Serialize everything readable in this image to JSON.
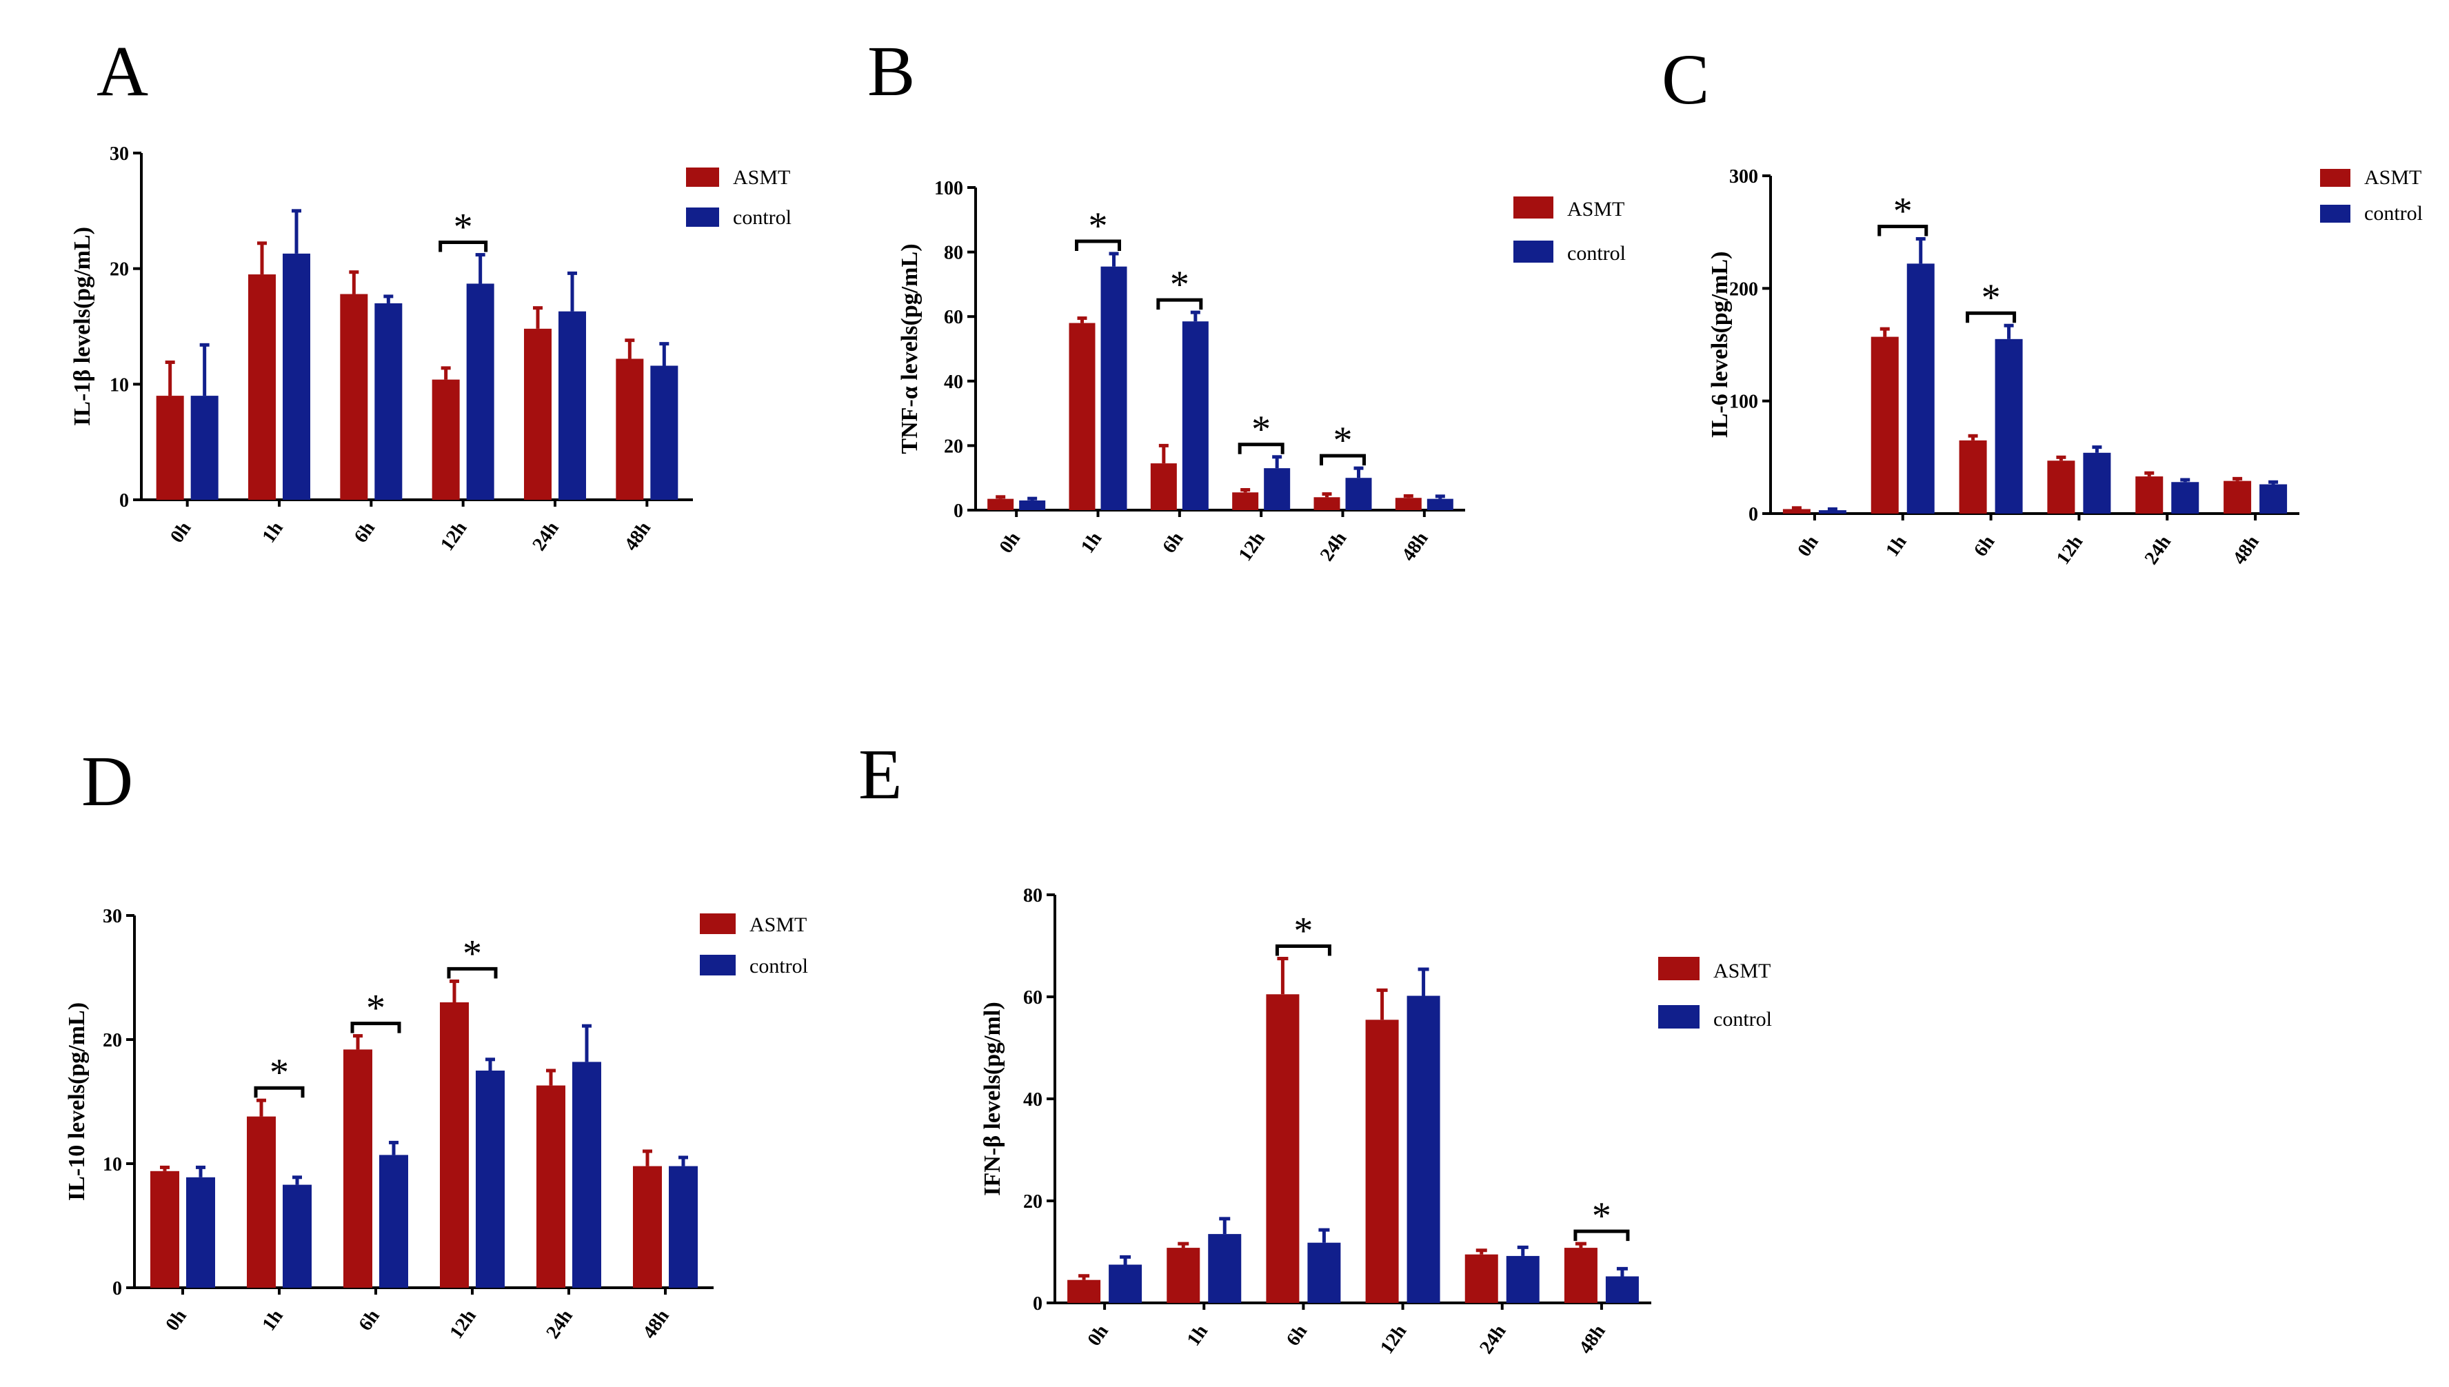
{
  "colors": {
    "asmt": "#a50f0f",
    "control": "#111f8c",
    "axis": "#000000"
  },
  "chart_data": [
    {
      "panel": "A",
      "type": "bar",
      "ylabel": "IL-1β levels(pg/mL)",
      "xlabel": "",
      "ylim": [
        0,
        30
      ],
      "yticks": [
        0,
        10,
        20,
        30
      ],
      "categories": [
        "0h",
        "1h",
        "6h",
        "12h",
        "24h",
        "48h"
      ],
      "series": [
        {
          "name": "ASMT",
          "values": [
            9.0,
            19.5,
            17.8,
            10.4,
            14.8,
            12.2
          ],
          "errors": [
            2.9,
            2.7,
            1.9,
            1.0,
            1.8,
            1.6
          ]
        },
        {
          "name": "control",
          "values": [
            9.0,
            21.3,
            17.0,
            18.7,
            16.3,
            11.6
          ],
          "errors": [
            4.4,
            3.7,
            0.6,
            2.5,
            3.3,
            1.9
          ]
        }
      ],
      "significance": [
        {
          "category": "12h",
          "label": "*"
        }
      ],
      "legend_position": "top-right"
    },
    {
      "panel": "B",
      "type": "bar",
      "ylabel": "TNF-α levels(pg/mL)",
      "xlabel": "",
      "ylim": [
        0,
        100
      ],
      "yticks": [
        0,
        20,
        40,
        60,
        80,
        100
      ],
      "categories": [
        "0h",
        "1h",
        "6h",
        "12h",
        "24h",
        "48h"
      ],
      "series": [
        {
          "name": "ASMT",
          "values": [
            3.5,
            58.0,
            14.5,
            5.5,
            4.0,
            3.8
          ],
          "errors": [
            0.6,
            1.5,
            5.5,
            0.8,
            1.0,
            0.6
          ]
        },
        {
          "name": "control",
          "values": [
            3.0,
            75.5,
            58.5,
            13.0,
            10.0,
            3.5
          ],
          "errors": [
            0.6,
            4.0,
            2.8,
            3.5,
            3.0,
            0.8
          ]
        }
      ],
      "significance": [
        {
          "category": "1h",
          "label": "*"
        },
        {
          "category": "6h",
          "label": "*"
        },
        {
          "category": "12h",
          "label": "*"
        },
        {
          "category": "24h",
          "label": "*"
        }
      ],
      "legend_position": "top-right"
    },
    {
      "panel": "C",
      "type": "bar",
      "ylabel": "IL-6 levels(pg/mL)",
      "xlabel": "",
      "ylim": [
        0,
        300
      ],
      "yticks": [
        0,
        100,
        200,
        300
      ],
      "categories": [
        "0h",
        "1h",
        "6h",
        "12h",
        "24h",
        "48h"
      ],
      "series": [
        {
          "name": "ASMT",
          "values": [
            4,
            157,
            65,
            47,
            33,
            29
          ],
          "errors": [
            1,
            7,
            4,
            3,
            3,
            2
          ]
        },
        {
          "name": "control",
          "values": [
            3,
            222,
            155,
            54,
            28,
            26
          ],
          "errors": [
            1,
            22,
            12,
            5,
            2,
            2
          ]
        }
      ],
      "significance": [
        {
          "category": "1h",
          "label": "*"
        },
        {
          "category": "6h",
          "label": "*"
        }
      ],
      "legend_position": "top-right"
    },
    {
      "panel": "D",
      "type": "bar",
      "ylabel": "IL-10 levels(pg/mL)",
      "xlabel": "",
      "ylim": [
        0,
        30
      ],
      "yticks": [
        0,
        10,
        20,
        30
      ],
      "categories": [
        "0h",
        "1h",
        "6h",
        "12h",
        "24h",
        "48h"
      ],
      "series": [
        {
          "name": "ASMT",
          "values": [
            9.4,
            13.8,
            19.2,
            23.0,
            16.3,
            9.8
          ],
          "errors": [
            0.3,
            1.3,
            1.1,
            1.7,
            1.2,
            1.2
          ]
        },
        {
          "name": "control",
          "values": [
            8.9,
            8.3,
            10.7,
            17.5,
            18.2,
            9.8
          ],
          "errors": [
            0.8,
            0.6,
            1.0,
            0.9,
            2.9,
            0.7
          ]
        }
      ],
      "significance": [
        {
          "category": "1h",
          "label": "*"
        },
        {
          "category": "6h",
          "label": "*"
        },
        {
          "category": "12h",
          "label": "*"
        }
      ],
      "legend_position": "top-right"
    },
    {
      "panel": "E",
      "type": "bar",
      "ylabel": "IFN-β levels(pg/ml)",
      "xlabel": "",
      "ylim": [
        0,
        80
      ],
      "yticks": [
        0,
        20,
        40,
        60,
        80
      ],
      "categories": [
        "0h",
        "1h",
        "6h",
        "12h",
        "24h",
        "48h"
      ],
      "series": [
        {
          "name": "ASMT",
          "values": [
            4.5,
            10.8,
            60.5,
            55.5,
            9.5,
            10.8
          ],
          "errors": [
            0.8,
            0.8,
            7.0,
            5.8,
            0.8,
            0.8
          ]
        },
        {
          "name": "control",
          "values": [
            7.5,
            13.5,
            11.8,
            60.2,
            9.2,
            5.2
          ],
          "errors": [
            1.5,
            3.0,
            2.5,
            5.2,
            1.7,
            1.5
          ]
        }
      ],
      "significance": [
        {
          "category": "6h",
          "label": "*"
        },
        {
          "category": "48h",
          "label": "*"
        }
      ],
      "legend_position": "right"
    }
  ]
}
